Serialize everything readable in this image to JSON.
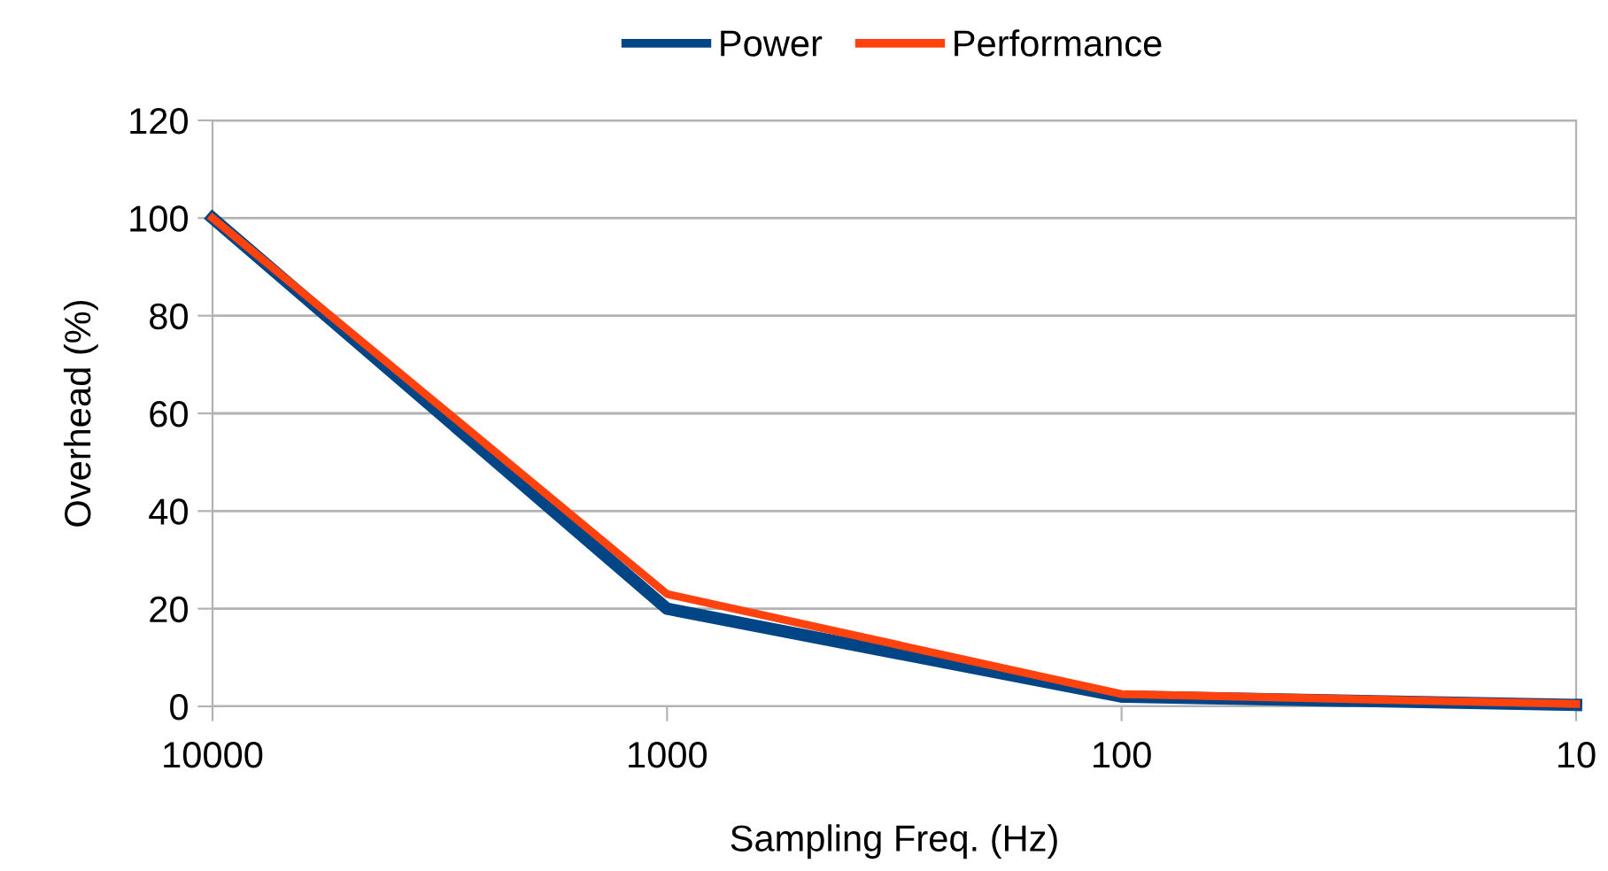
{
  "chart_data": {
    "type": "line",
    "xlabel": "Sampling Freq. (Hz)",
    "ylabel": "Overhead (%)",
    "categories": [
      "10000",
      "1000",
      "100",
      "10"
    ],
    "series": [
      {
        "name": "Power",
        "color": "#004586",
        "values": [
          100,
          20,
          2,
          0.3
        ]
      },
      {
        "name": "Performance",
        "color": "#ff420e",
        "values": [
          100,
          23,
          2.5,
          0.5
        ]
      }
    ],
    "ylim": [
      0,
      120
    ],
    "yticks": [
      0,
      20,
      40,
      60,
      80,
      100,
      120
    ],
    "grid": "y",
    "legend": "top",
    "marker": "none",
    "line_style": "solid"
  }
}
